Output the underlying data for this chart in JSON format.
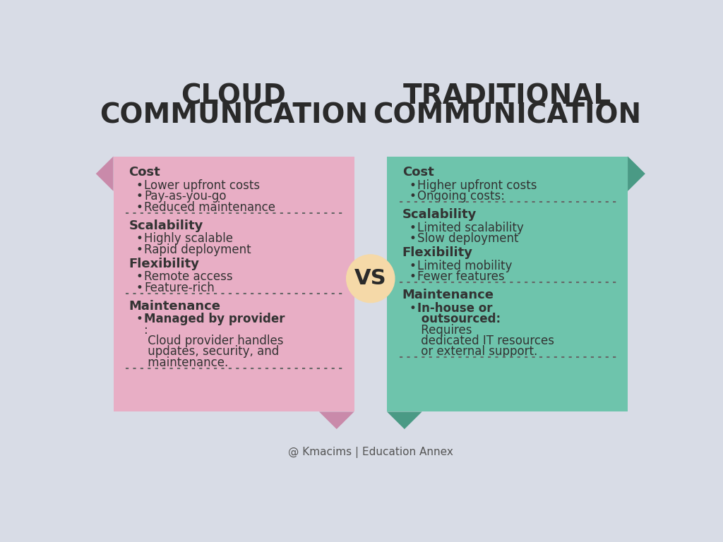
{
  "bg_color": "#d8dce6",
  "left_title_line1": "CLOUD",
  "left_title_line2": "COMMUNICATION",
  "right_title_line1": "TRADITIONAL",
  "right_title_line2": "COMMUNICATION",
  "vs_text": "VS",
  "vs_bg": "#f5d9a8",
  "left_panel_color": "#e8aec5",
  "left_panel_dark": "#c98aaa",
  "right_panel_color": "#6ec4ac",
  "right_panel_dark": "#4a9a85",
  "title_color": "#2a2a2a",
  "text_color": "#333333",
  "dot_color": "#666666",
  "footer_text": "@ Kmacims | Education Annex",
  "left_sections": [
    {
      "heading": "Cost",
      "items": [
        {
          "type": "bullet",
          "text": "Lower upfront costs"
        },
        {
          "type": "bullet",
          "text": "Pay-as-you-go"
        },
        {
          "type": "bullet",
          "text": "Reduced maintenance"
        }
      ],
      "separator": true
    },
    {
      "heading": "Scalability",
      "items": [
        {
          "type": "bullet",
          "text": "Highly scalable"
        },
        {
          "type": "bullet",
          "text": "Rapid deployment"
        }
      ],
      "separator": false
    },
    {
      "heading": "Flexibility",
      "items": [
        {
          "type": "bullet",
          "text": "Remote access"
        },
        {
          "type": "bullet",
          "text": "Feature-rich"
        }
      ],
      "separator": true
    },
    {
      "heading": "Maintenance",
      "items": [
        {
          "type": "rich_bullet",
          "lines": [
            {
              "bold": true,
              "text": "Managed by provider"
            },
            {
              "bold": false,
              "text": ":"
            },
            {
              "bold": false,
              "text": " Cloud provider handles"
            },
            {
              "bold": false,
              "text": " updates, security, and"
            },
            {
              "bold": false,
              "text": " maintenance."
            }
          ]
        }
      ],
      "separator": true
    }
  ],
  "right_sections": [
    {
      "heading": "Cost",
      "items": [
        {
          "type": "bullet",
          "text": "Higher upfront costs"
        },
        {
          "type": "bullet",
          "text": "Ongoing costs:"
        }
      ],
      "separator": true
    },
    {
      "heading": "Scalability",
      "items": [
        {
          "type": "bullet",
          "text": "Limited scalability"
        },
        {
          "type": "bullet",
          "text": "Slow deployment"
        }
      ],
      "separator": false
    },
    {
      "heading": "Flexibility",
      "items": [
        {
          "type": "bullet",
          "text": "Limited mobility"
        },
        {
          "type": "bullet",
          "text": "Fewer features"
        }
      ],
      "separator": true
    },
    {
      "heading": "Maintenance",
      "items": [
        {
          "type": "rich_bullet",
          "lines": [
            {
              "bold": true,
              "text": "In-house or"
            },
            {
              "bold": true,
              "text": " outsourced:"
            },
            {
              "bold": false,
              "text": " Requires"
            },
            {
              "bold": false,
              "text": " dedicated IT resources"
            },
            {
              "bold": false,
              "text": " or external support."
            }
          ]
        }
      ],
      "separator": true
    }
  ]
}
